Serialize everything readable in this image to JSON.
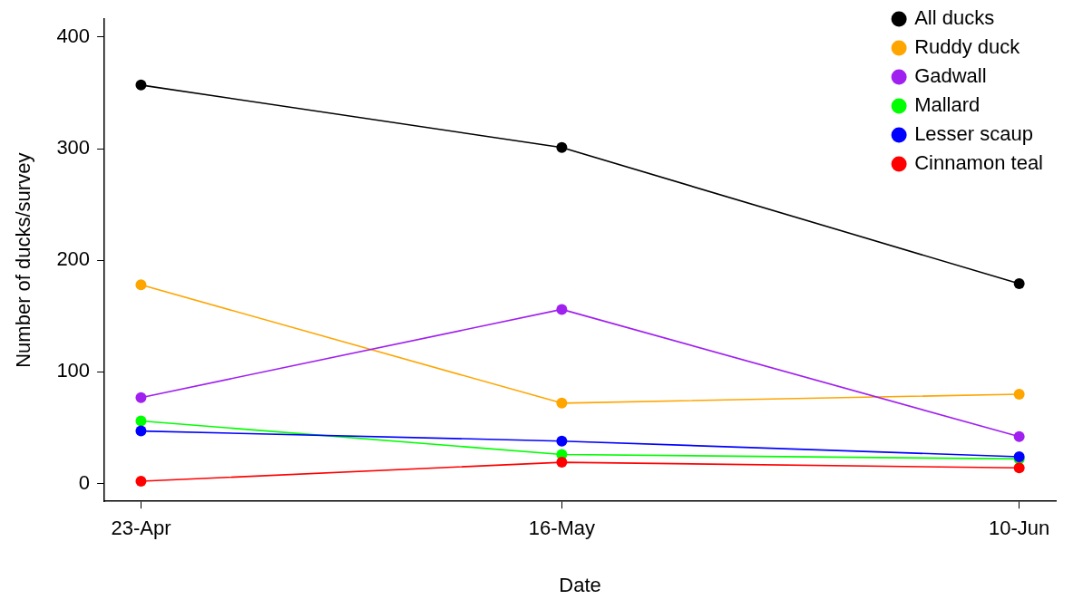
{
  "chart_data": {
    "type": "line",
    "xlabel": "Date",
    "ylabel": "Number of ducks/survey",
    "x": [
      "--04-23",
      "--05-16",
      "--06-10"
    ],
    "xlim": [
      "--04-21",
      "--06-12"
    ],
    "xticks": [
      {
        "value": "--04-23",
        "label": "23-Apr"
      },
      {
        "value": "--05-16",
        "label": "16-May"
      },
      {
        "value": "--06-10",
        "label": "10-Jun"
      }
    ],
    "ylim": [
      -16,
      416
    ],
    "yticks": [
      0,
      100,
      200,
      300,
      400
    ],
    "grid": false,
    "legend": "top right",
    "marker": "circle",
    "line_style": "solid",
    "series": [
      {
        "name": "All ducks",
        "color": "#000000",
        "values": [
          357,
          301,
          179
        ]
      },
      {
        "name": "Ruddy duck",
        "color": "#ffa500",
        "values": [
          178,
          72,
          80
        ]
      },
      {
        "name": "Gadwall",
        "color": "#a020f0",
        "values": [
          77,
          156,
          42
        ]
      },
      {
        "name": "Mallard",
        "color": "#00ff00",
        "values": [
          56,
          26,
          22
        ]
      },
      {
        "name": "Lesser scaup",
        "color": "#0000ff",
        "values": [
          47,
          38,
          24
        ]
      },
      {
        "name": "Cinnamon teal",
        "color": "#ff0000",
        "values": [
          2,
          19,
          14
        ]
      }
    ]
  }
}
